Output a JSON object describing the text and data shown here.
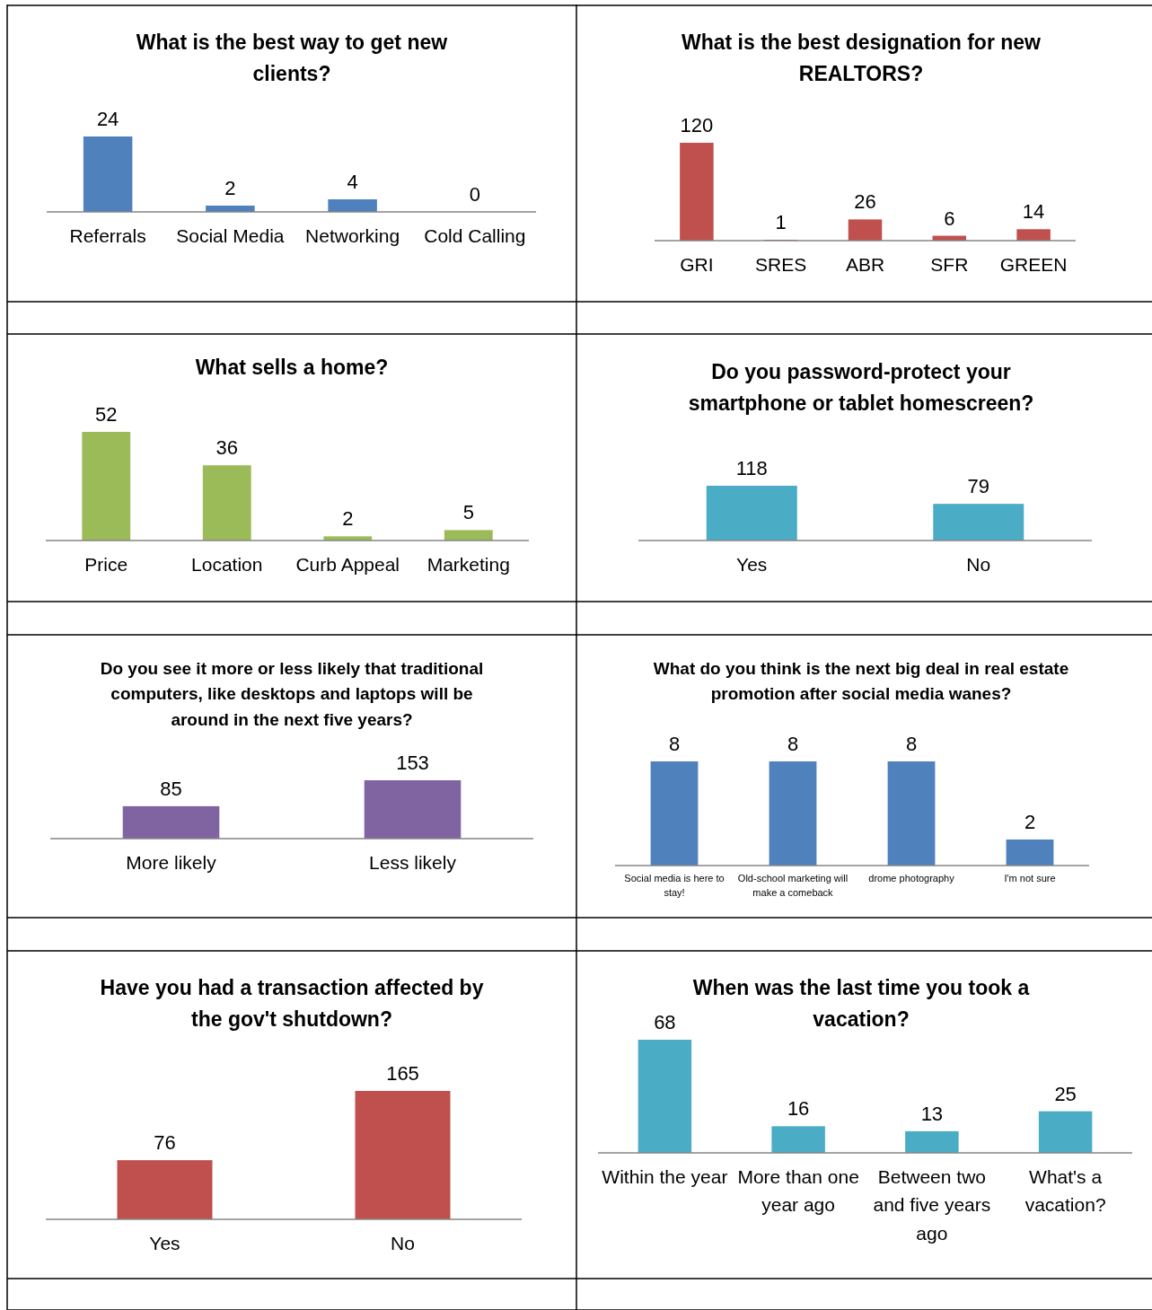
{
  "chart_data": [
    {
      "type": "bar",
      "title": "What is the best way to get new clients?",
      "categories": [
        "Referrals",
        "Social Media",
        "Networking",
        "Cold Calling"
      ],
      "values": [
        24,
        2,
        4,
        0
      ],
      "color": "#4f81bd",
      "data_labels": true
    },
    {
      "type": "bar",
      "title": "What is the best designation for new REALTORS?",
      "categories": [
        "GRI",
        "SRES",
        "ABR",
        "SFR",
        "GREEN"
      ],
      "values": [
        120,
        1,
        26,
        6,
        14
      ],
      "color": "#c0504d",
      "data_labels": true
    },
    {
      "type": "bar",
      "title": "What sells a home?",
      "categories": [
        "Price",
        "Location",
        "Curb Appeal",
        "Marketing"
      ],
      "values": [
        52,
        36,
        2,
        5
      ],
      "color": "#9bbb59",
      "data_labels": true
    },
    {
      "type": "bar",
      "title": "Do you password-protect your smartphone or tablet homescreen?",
      "categories": [
        "Yes",
        "No"
      ],
      "values": [
        118,
        79
      ],
      "color": "#4bacc6",
      "data_labels": true
    },
    {
      "type": "bar",
      "title": "Do you see it more or less likely that traditional computers, like desktops and laptops will be around in the next five years?",
      "categories": [
        "More likely",
        "Less likely"
      ],
      "values": [
        85,
        153
      ],
      "color": "#8064a2",
      "data_labels": true
    },
    {
      "type": "bar",
      "title": "What do you think is the next big deal in real estate promotion after social media wanes?",
      "categories": [
        "Social media is here to stay!",
        "Old-school marketing will make a comeback",
        "drome photography",
        "I'm not sure"
      ],
      "values": [
        8,
        8,
        8,
        2
      ],
      "color": "#4f81bd",
      "data_labels": true
    },
    {
      "type": "bar",
      "title": "Have you had a transaction affected by the gov't shutdown?",
      "categories": [
        "Yes",
        "No"
      ],
      "values": [
        76,
        165
      ],
      "color": "#c0504d",
      "data_labels": true
    },
    {
      "type": "bar",
      "title": "When was the last time you took a vacation?",
      "categories": [
        "Within the year",
        "More than one year ago",
        "Between two and five years ago",
        "What's a vacation?"
      ],
      "values": [
        68,
        16,
        13,
        25
      ],
      "color": "#4bacc6",
      "data_labels": true
    }
  ]
}
